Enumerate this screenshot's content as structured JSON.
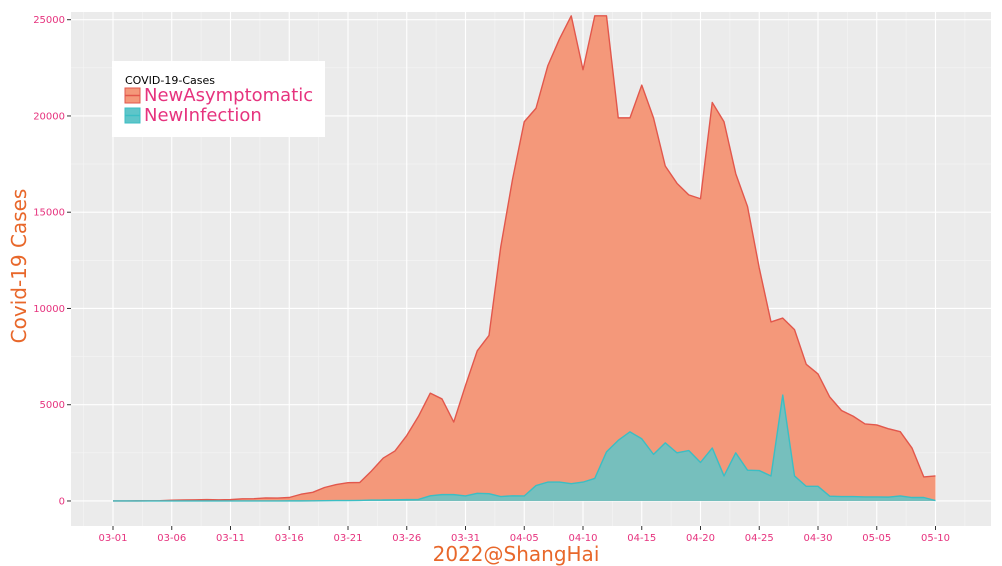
{
  "chart_data": {
    "type": "area",
    "xlabel": "2022@ShangHai",
    "ylabel": "Covid-19 Cases",
    "legend_title": "COVID-19-Cases",
    "legend_position": "top-left",
    "grid": true,
    "ylim": [
      -1300,
      25400
    ],
    "yticks": [
      0,
      5000,
      10000,
      15000,
      20000,
      25000
    ],
    "xticks": [
      "03-01",
      "03-06",
      "03-11",
      "03-16",
      "03-21",
      "03-26",
      "03-31",
      "04-05",
      "04-10",
      "04-15",
      "04-20",
      "04-25",
      "04-30",
      "05-05",
      "05-10"
    ],
    "x_start": "03-01",
    "series": [
      {
        "name": "NewAsymptomatic",
        "fill": "#f4987a",
        "line": "#e2574c",
        "values": [
          2,
          2,
          5,
          10,
          15,
          40,
          50,
          60,
          70,
          60,
          70,
          110,
          120,
          160,
          150,
          180,
          350,
          450,
          700,
          850,
          950,
          960,
          1560,
          2230,
          2600,
          3400,
          4400,
          5600,
          5300,
          4100,
          6000,
          7800,
          8600,
          13200,
          16700,
          19700,
          20400,
          22600,
          24000,
          25200,
          22400,
          25200,
          25200,
          19900,
          19900,
          21600,
          19900,
          17400,
          16500,
          15900,
          15700,
          20700,
          19700,
          17000,
          15300,
          12100,
          9300,
          9500,
          8900,
          7100,
          6600,
          5400,
          4700,
          4400,
          4000,
          3950,
          3750,
          3600,
          2750,
          1250,
          1300
        ]
      },
      {
        "name": "NewInfection",
        "fill": "#5fc5c9",
        "line": "#3bbec4",
        "values": [
          0,
          0,
          0,
          0,
          0,
          0,
          0,
          0,
          0,
          0,
          0,
          0,
          0,
          0,
          0,
          5,
          5,
          10,
          15,
          20,
          20,
          30,
          45,
          50,
          60,
          70,
          80,
          270,
          330,
          330,
          260,
          400,
          380,
          230,
          270,
          260,
          800,
          980,
          980,
          900,
          980,
          1170,
          2550,
          3150,
          3590,
          3230,
          2420,
          3020,
          2500,
          2620,
          2000,
          2750,
          1300,
          2500,
          1600,
          1580,
          1300,
          5500,
          1300,
          760,
          760,
          250,
          230,
          230,
          210,
          210,
          200,
          260,
          180,
          180,
          20
        ]
      }
    ]
  }
}
